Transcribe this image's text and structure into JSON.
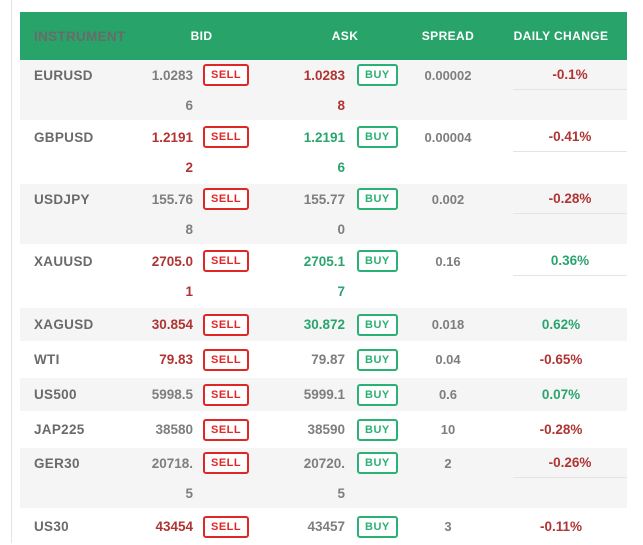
{
  "palette": {
    "header_bg": "#28a46b",
    "sell_red": "#e12626",
    "buy_green": "#2ab174",
    "text_red": "#b03434",
    "text_green": "#2aa46e",
    "text_gray": "#7e7e7e",
    "row_alt_bg": "#f5f5f5"
  },
  "header": {
    "columns": [
      "INSTRUMENT",
      "BID",
      "ASK",
      "SPREAD",
      "DAILY CHANGE"
    ]
  },
  "buttons": {
    "sell": "SELL",
    "buy": "BUY"
  },
  "rows": [
    {
      "instrument": "EURUSD",
      "bid1": "1.0283",
      "bid2": "6",
      "bid_tone": "gray",
      "ask1": "1.0283",
      "ask2": "8",
      "ask_tone": "red",
      "spread": "0.00002",
      "change": "-0.1%",
      "change_tone": "red"
    },
    {
      "instrument": "GBPUSD",
      "bid1": "1.2191",
      "bid2": "2",
      "bid_tone": "red",
      "ask1": "1.2191",
      "ask2": "6",
      "ask_tone": "green",
      "spread": "0.00004",
      "change": "-0.41%",
      "change_tone": "red"
    },
    {
      "instrument": "USDJPY",
      "bid1": "155.76",
      "bid2": "8",
      "bid_tone": "gray",
      "ask1": "155.77",
      "ask2": "0",
      "ask_tone": "gray",
      "spread": "0.002",
      "change": "-0.28%",
      "change_tone": "red"
    },
    {
      "instrument": "XAUUSD",
      "bid1": "2705.0",
      "bid2": "1",
      "bid_tone": "red",
      "ask1": "2705.1",
      "ask2": "7",
      "ask_tone": "green",
      "spread": "0.16",
      "change": "0.36%",
      "change_tone": "green"
    },
    {
      "instrument": "XAGUSD",
      "bid1": "30.854",
      "bid2": "",
      "bid_tone": "red",
      "ask1": "30.872",
      "ask2": "",
      "ask_tone": "green",
      "spread": "0.018",
      "change": "0.62%",
      "change_tone": "green"
    },
    {
      "instrument": "WTI",
      "bid1": "79.83",
      "bid2": "",
      "bid_tone": "red",
      "ask1": "79.87",
      "ask2": "",
      "ask_tone": "gray",
      "spread": "0.04",
      "change": "-0.65%",
      "change_tone": "red"
    },
    {
      "instrument": "US500",
      "bid1": "5998.5",
      "bid2": "",
      "bid_tone": "gray",
      "ask1": "5999.1",
      "ask2": "",
      "ask_tone": "gray",
      "spread": "0.6",
      "change": "0.07%",
      "change_tone": "green"
    },
    {
      "instrument": "JAP225",
      "bid1": "38580",
      "bid2": "",
      "bid_tone": "gray",
      "ask1": "38590",
      "ask2": "",
      "ask_tone": "gray",
      "spread": "10",
      "change": "-0.28%",
      "change_tone": "red"
    },
    {
      "instrument": "GER30",
      "bid1": "20718.",
      "bid2": "5",
      "bid_tone": "gray",
      "ask1": "20720.",
      "ask2": "5",
      "ask_tone": "gray",
      "spread": "2",
      "change": "-0.26%",
      "change_tone": "red"
    },
    {
      "instrument": "US30",
      "bid1": "43454",
      "bid2": "",
      "bid_tone": "red",
      "ask1": "43457",
      "ask2": "",
      "ask_tone": "gray",
      "spread": "3",
      "change": "-0.11%",
      "change_tone": "red"
    }
  ]
}
